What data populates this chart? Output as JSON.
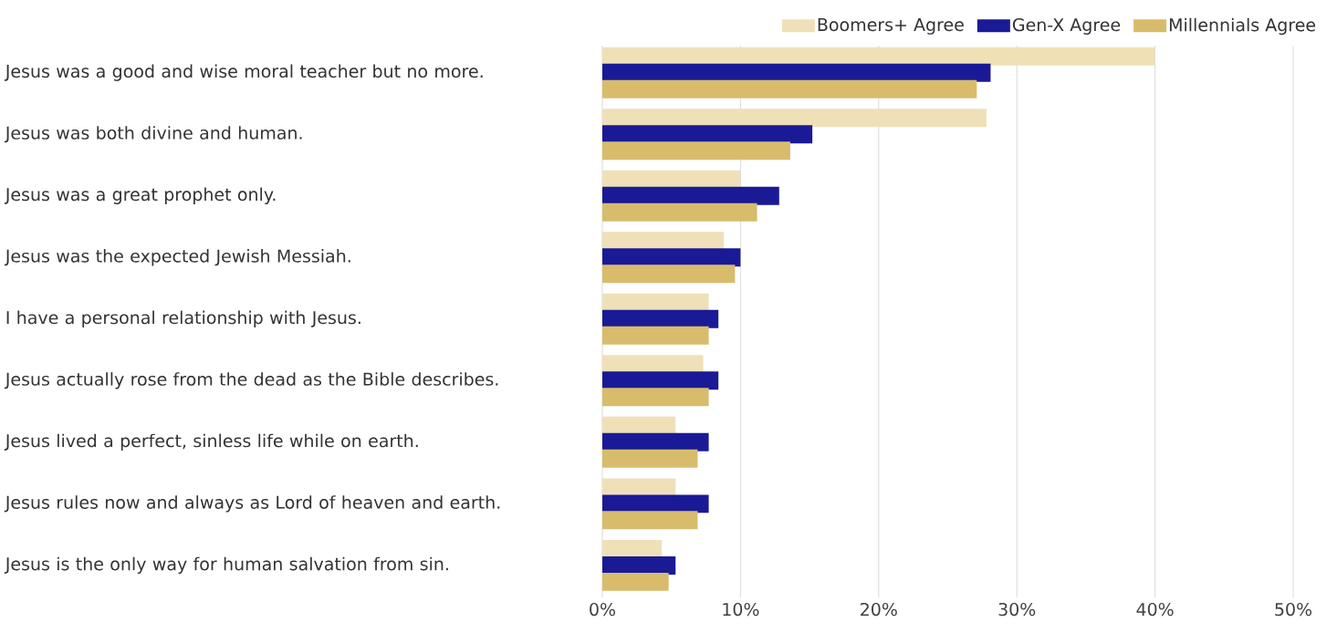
{
  "chart_data": {
    "type": "bar",
    "orientation": "horizontal",
    "categories": [
      "Jesus was a good and wise moral teacher but no more.",
      "Jesus was both divine and human.",
      "Jesus was a great prophet only.",
      "Jesus was the expected Jewish Messiah.",
      "I have a personal relationship with Jesus.",
      "Jesus actually rose from the dead as the Bible describes.",
      "Jesus lived a perfect, sinless life while on earth.",
      "Jesus rules now and always as Lord of heaven and earth.",
      "Jesus is the only way for human salvation from sin."
    ],
    "series": [
      {
        "name": "Boomers+ Agree",
        "color": "#f0e0b8",
        "values": [
          40,
          27.8,
          10.0,
          8.8,
          7.7,
          7.3,
          5.3,
          5.3,
          4.3
        ]
      },
      {
        "name": "Gen-X Agree",
        "color": "#1a1a96",
        "values": [
          28.1,
          15.2,
          12.8,
          10.0,
          8.4,
          8.4,
          7.7,
          7.7,
          5.3
        ]
      },
      {
        "name": "Millennials Agree",
        "color": "#d8bc6c",
        "values": [
          27.1,
          13.6,
          11.2,
          9.6,
          7.7,
          7.7,
          6.9,
          6.9,
          4.8
        ]
      }
    ],
    "xlim": [
      0,
      50
    ],
    "xticks": [
      {
        "value": 0,
        "label": "0%"
      },
      {
        "value": 10,
        "label": "10%"
      },
      {
        "value": 20,
        "label": "20%"
      },
      {
        "value": 30,
        "label": "30%"
      },
      {
        "value": 40,
        "label": "40%"
      },
      {
        "value": 50,
        "label": "50%"
      }
    ],
    "grid": "x",
    "legend": "top right"
  }
}
